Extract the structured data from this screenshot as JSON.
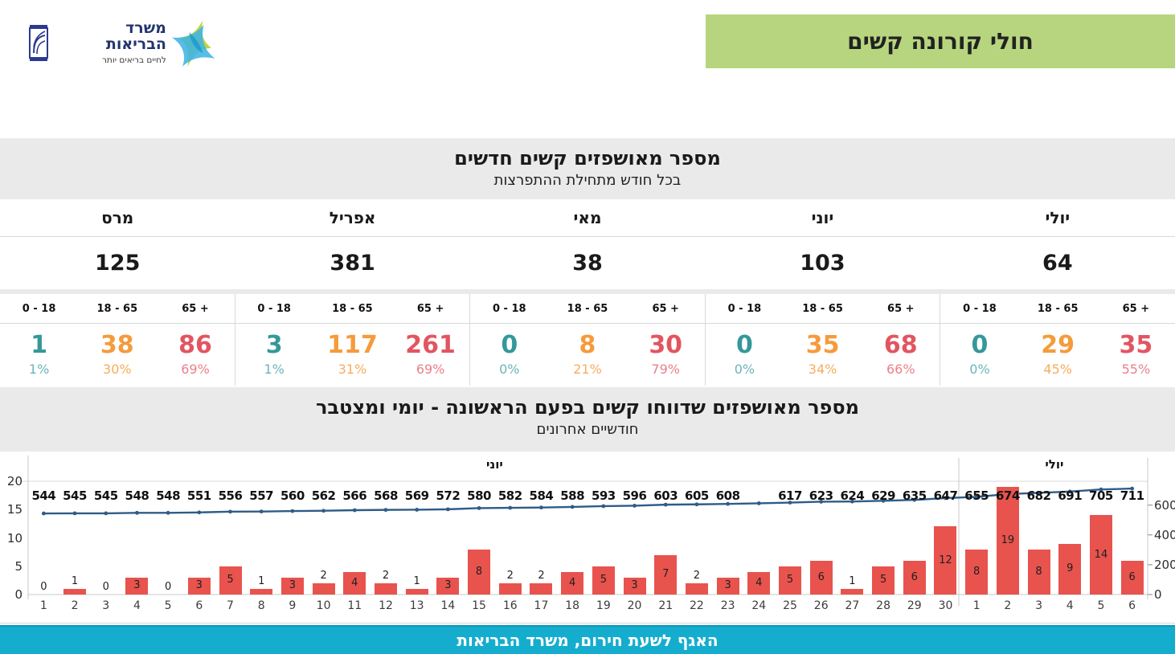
{
  "header": {
    "banner": {
      "label": "חולי קורונה קשים",
      "bg_color": "#B7D57E"
    },
    "logo": {
      "ministry_name_line1": "משרד",
      "ministry_name_line2": "הבריאות",
      "tagline": "לחיים בריאים יותר"
    }
  },
  "monthly_table": {
    "title": "מספר מאושפזים קשים חדשים",
    "subtitle": "בכל חודש מתחילת ההתפרצות",
    "age_group_headers": [
      "0 - 18",
      "18 - 65",
      "65 +"
    ],
    "age_group_colors": {
      "age_0_18": "#359899",
      "age_18_65": "#F59B3C",
      "age_65_plus": "#E25560"
    },
    "months": [
      {
        "name": "מרס",
        "total": "125",
        "groups": [
          {
            "count": "1",
            "pct": "1%"
          },
          {
            "count": "38",
            "pct": "30%"
          },
          {
            "count": "86",
            "pct": "69%"
          }
        ]
      },
      {
        "name": "אפריל",
        "total": "381",
        "groups": [
          {
            "count": "3",
            "pct": "1%"
          },
          {
            "count": "117",
            "pct": "31%"
          },
          {
            "count": "261",
            "pct": "69%"
          }
        ]
      },
      {
        "name": "מאי",
        "total": "38",
        "groups": [
          {
            "count": "0",
            "pct": "0%"
          },
          {
            "count": "8",
            "pct": "21%"
          },
          {
            "count": "30",
            "pct": "79%"
          }
        ]
      },
      {
        "name": "יוני",
        "total": "103",
        "groups": [
          {
            "count": "0",
            "pct": "0%"
          },
          {
            "count": "35",
            "pct": "34%"
          },
          {
            "count": "68",
            "pct": "66%"
          }
        ]
      },
      {
        "name": "יולי",
        "total": "64",
        "groups": [
          {
            "count": "0",
            "pct": "0%"
          },
          {
            "count": "29",
            "pct": "45%"
          },
          {
            "count": "35",
            "pct": "55%"
          }
        ]
      }
    ]
  },
  "chart_data": {
    "type": "combo-bar-line",
    "title": "מספר מאושפזים שדווחו קשים בפעם הראשונה - יומי ומצטבר",
    "subtitle": "חודשיים אחרונים",
    "month_sections": [
      {
        "label": "יוני",
        "days": 30
      },
      {
        "label": "יולי",
        "days": 6
      }
    ],
    "day_labels": [
      "1",
      "2",
      "3",
      "4",
      "5",
      "6",
      "7",
      "8",
      "9",
      "10",
      "11",
      "12",
      "13",
      "14",
      "15",
      "16",
      "17",
      "18",
      "19",
      "20",
      "21",
      "22",
      "23",
      "24",
      "25",
      "26",
      "27",
      "28",
      "29",
      "30",
      "1",
      "2",
      "3",
      "4",
      "5",
      "6"
    ],
    "bars": {
      "name": "daily-new-severe-cases",
      "color": "#E8534E",
      "values": [
        0,
        1,
        0,
        3,
        0,
        3,
        5,
        1,
        3,
        2,
        4,
        2,
        1,
        3,
        8,
        2,
        2,
        4,
        5,
        3,
        7,
        2,
        3,
        4,
        5,
        6,
        1,
        5,
        6,
        12,
        8,
        19,
        8,
        9,
        14,
        6
      ]
    },
    "line": {
      "name": "cumulative-severe-cases",
      "color": "#2E5C87",
      "values": [
        544,
        545,
        545,
        548,
        548,
        551,
        556,
        557,
        560,
        562,
        566,
        568,
        569,
        572,
        580,
        582,
        584,
        588,
        593,
        596,
        603,
        605,
        608,
        612,
        617,
        623,
        624,
        629,
        635,
        647,
        655,
        674,
        682,
        691,
        705,
        711
      ],
      "labels": [
        "544",
        "545",
        "545",
        "548",
        "548",
        "551",
        "556",
        "557",
        "560",
        "562",
        "566",
        "568",
        "569",
        "572",
        "580",
        "582",
        "584",
        "588",
        "593",
        "596",
        "603",
        "605",
        "608",
        "",
        "617",
        "623",
        "624",
        "629",
        "635",
        "647",
        "655",
        "674",
        "682",
        "691",
        "705",
        "711"
      ]
    },
    "left_axis": {
      "range": [
        0,
        20
      ],
      "ticks": [
        0,
        5,
        10,
        15,
        20
      ]
    },
    "right_axis": {
      "range": [
        0,
        760
      ],
      "ticks": [
        0,
        200,
        400,
        600
      ]
    }
  },
  "footer": {
    "text": "האגף לשעת חירום, משרד הבריאות",
    "bg_color": "#15ADCE"
  }
}
